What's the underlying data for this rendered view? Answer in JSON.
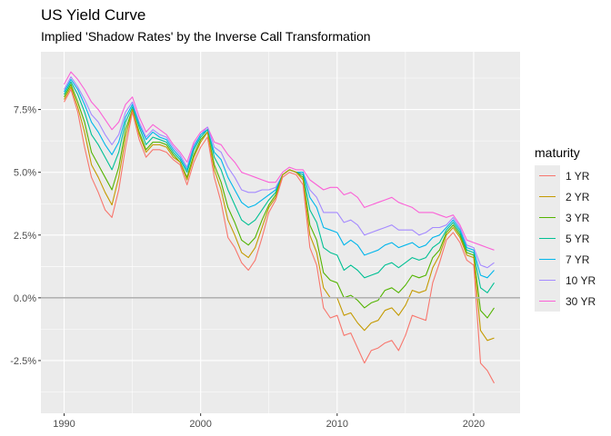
{
  "title": "US Yield Curve",
  "subtitle": "Implied 'Shadow Rates' by the Inverse Call Transformation",
  "legend": {
    "title": "maturity",
    "items": [
      {
        "label": "1 YR",
        "color": "#F8766D"
      },
      {
        "label": "2 YR",
        "color": "#C49A00"
      },
      {
        "label": "3 YR",
        "color": "#53B400"
      },
      {
        "label": "5 YR",
        "color": "#00C094"
      },
      {
        "label": "7 YR",
        "color": "#00B6EB"
      },
      {
        "label": "10 YR",
        "color": "#A58AFF"
      },
      {
        "label": "30 YR",
        "color": "#FB61D7"
      }
    ]
  },
  "chart_data": {
    "type": "line",
    "x_axis": {
      "ticks": [
        1990,
        2000,
        2010,
        2020
      ],
      "tick_labels": [
        "1990",
        "2000",
        "2010",
        "2020"
      ],
      "range": [
        1988.3,
        2023.4
      ]
    },
    "y_axis": {
      "ticks": [
        -2.5,
        0,
        2.5,
        5,
        7.5
      ],
      "tick_labels": [
        "-2.5%",
        "0.0%",
        "2.5%",
        "5.0%",
        "7.5%"
      ],
      "range": [
        -4.6,
        9.8
      ]
    },
    "reference_line": {
      "y": 0,
      "color": "#b3b3b3"
    },
    "panel_background": "#ebebeb",
    "grid": true,
    "legend_position": "right",
    "x": [
      1990.0,
      1990.5,
      1991.0,
      1991.5,
      1992.0,
      1992.5,
      1993.0,
      1993.5,
      1994.0,
      1994.5,
      1995.0,
      1995.5,
      1996.0,
      1996.5,
      1997.0,
      1997.5,
      1998.0,
      1998.5,
      1999.0,
      1999.5,
      2000.0,
      2000.5,
      2001.0,
      2001.5,
      2002.0,
      2002.5,
      2003.0,
      2003.5,
      2004.0,
      2004.5,
      2005.0,
      2005.5,
      2006.0,
      2006.5,
      2007.0,
      2007.5,
      2008.0,
      2008.5,
      2009.0,
      2009.5,
      2010.0,
      2010.5,
      2011.0,
      2011.5,
      2012.0,
      2012.5,
      2013.0,
      2013.5,
      2014.0,
      2014.5,
      2015.0,
      2015.5,
      2016.0,
      2016.5,
      2017.0,
      2017.5,
      2018.0,
      2018.5,
      2019.0,
      2019.5,
      2020.0,
      2020.5,
      2021.0,
      2021.5
    ],
    "series": [
      {
        "name": "1 YR",
        "color": "#F8766D",
        "values": [
          7.8,
          8.3,
          7.4,
          6.0,
          4.8,
          4.2,
          3.5,
          3.2,
          4.3,
          6.0,
          7.4,
          6.3,
          5.6,
          5.9,
          5.9,
          5.8,
          5.5,
          5.3,
          4.5,
          5.4,
          6.0,
          6.4,
          4.8,
          3.8,
          2.4,
          2.0,
          1.4,
          1.1,
          1.5,
          2.4,
          3.4,
          3.9,
          4.8,
          5.0,
          4.9,
          4.5,
          2.0,
          1.3,
          -0.4,
          -0.8,
          -0.7,
          -1.5,
          -1.4,
          -2.0,
          -2.6,
          -2.1,
          -2.0,
          -1.8,
          -1.7,
          -2.1,
          -1.5,
          -0.7,
          -0.8,
          -0.9,
          0.6,
          1.4,
          2.3,
          2.6,
          2.2,
          1.5,
          1.3,
          -2.6,
          -2.9,
          -3.4
        ]
      },
      {
        "name": "2 YR",
        "color": "#C49A00",
        "values": [
          7.9,
          8.4,
          7.6,
          6.6,
          5.3,
          4.8,
          4.2,
          3.7,
          4.8,
          6.4,
          7.5,
          6.5,
          5.8,
          6.1,
          6.1,
          6.0,
          5.6,
          5.4,
          4.7,
          5.6,
          6.2,
          6.6,
          5.1,
          4.3,
          3.1,
          2.5,
          1.8,
          1.6,
          2.0,
          2.8,
          3.6,
          4.0,
          4.9,
          5.1,
          5.0,
          4.7,
          2.5,
          1.8,
          0.4,
          0.0,
          0.0,
          -0.7,
          -0.6,
          -1.0,
          -1.3,
          -1.0,
          -0.9,
          -0.5,
          -0.4,
          -0.7,
          -0.3,
          0.3,
          0.2,
          0.3,
          1.2,
          1.7,
          2.5,
          2.8,
          2.4,
          1.7,
          1.6,
          -1.3,
          -1.7,
          -1.6
        ]
      },
      {
        "name": "3 YR",
        "color": "#53B400",
        "values": [
          8.0,
          8.5,
          7.8,
          7.0,
          5.8,
          5.3,
          4.8,
          4.3,
          5.2,
          6.7,
          7.5,
          6.6,
          5.9,
          6.2,
          6.2,
          6.1,
          5.7,
          5.4,
          4.8,
          5.7,
          6.3,
          6.6,
          5.3,
          4.6,
          3.6,
          3.0,
          2.3,
          2.1,
          2.4,
          3.1,
          3.7,
          4.1,
          4.9,
          5.1,
          5.0,
          4.8,
          2.9,
          2.3,
          1.0,
          0.7,
          0.6,
          0.0,
          0.1,
          -0.1,
          -0.4,
          -0.2,
          -0.1,
          0.3,
          0.4,
          0.2,
          0.5,
          0.9,
          0.8,
          0.9,
          1.6,
          1.9,
          2.6,
          2.9,
          2.5,
          1.8,
          1.7,
          -0.5,
          -0.8,
          -0.4
        ]
      },
      {
        "name": "5 YR",
        "color": "#00C094",
        "values": [
          8.1,
          8.6,
          8.1,
          7.4,
          6.5,
          6.1,
          5.6,
          5.1,
          5.8,
          7.0,
          7.6,
          6.8,
          6.1,
          6.4,
          6.3,
          6.2,
          5.8,
          5.5,
          5.0,
          5.9,
          6.4,
          6.7,
          5.6,
          5.1,
          4.3,
          3.7,
          3.1,
          2.9,
          3.1,
          3.5,
          3.9,
          4.2,
          4.9,
          5.1,
          5.0,
          4.9,
          3.5,
          3.0,
          2.0,
          1.8,
          1.7,
          1.1,
          1.3,
          1.1,
          0.8,
          0.9,
          1.0,
          1.3,
          1.4,
          1.2,
          1.4,
          1.6,
          1.5,
          1.6,
          2.0,
          2.2,
          2.7,
          3.0,
          2.6,
          1.9,
          1.8,
          0.4,
          0.2,
          0.6
        ]
      },
      {
        "name": "7 YR",
        "color": "#00B6EB",
        "values": [
          8.2,
          8.7,
          8.3,
          7.7,
          7.0,
          6.6,
          6.1,
          5.7,
          6.2,
          7.2,
          7.7,
          6.9,
          6.3,
          6.6,
          6.4,
          6.3,
          5.9,
          5.6,
          5.1,
          6.0,
          6.5,
          6.7,
          5.8,
          5.5,
          4.8,
          4.3,
          3.8,
          3.6,
          3.7,
          3.9,
          4.1,
          4.3,
          4.9,
          5.1,
          5.0,
          5.0,
          4.0,
          3.6,
          2.8,
          2.7,
          2.6,
          2.1,
          2.3,
          2.1,
          1.7,
          1.8,
          1.9,
          2.1,
          2.2,
          2.0,
          2.1,
          2.2,
          2.0,
          2.1,
          2.4,
          2.5,
          2.8,
          3.1,
          2.7,
          2.0,
          1.9,
          0.9,
          0.8,
          1.1
        ]
      },
      {
        "name": "10 YR",
        "color": "#A58AFF",
        "values": [
          8.3,
          8.8,
          8.4,
          7.9,
          7.3,
          7.0,
          6.5,
          6.1,
          6.5,
          7.4,
          7.8,
          7.0,
          6.4,
          6.7,
          6.5,
          6.4,
          6.0,
          5.7,
          5.2,
          6.1,
          6.5,
          6.8,
          6.0,
          5.8,
          5.2,
          4.8,
          4.3,
          4.2,
          4.2,
          4.3,
          4.3,
          4.4,
          4.9,
          5.1,
          5.0,
          5.0,
          4.3,
          4.0,
          3.4,
          3.4,
          3.4,
          3.0,
          3.1,
          2.9,
          2.5,
          2.6,
          2.7,
          2.8,
          2.9,
          2.7,
          2.7,
          2.7,
          2.5,
          2.6,
          2.8,
          2.8,
          2.9,
          3.2,
          2.8,
          2.1,
          2.0,
          1.3,
          1.2,
          1.4
        ]
      },
      {
        "name": "30 YR",
        "color": "#FB61D7",
        "values": [
          8.5,
          9.0,
          8.7,
          8.3,
          7.8,
          7.5,
          7.1,
          6.7,
          7.0,
          7.7,
          8.0,
          7.2,
          6.6,
          6.9,
          6.7,
          6.5,
          6.1,
          5.8,
          5.4,
          6.2,
          6.6,
          6.8,
          6.2,
          6.1,
          5.7,
          5.4,
          5.0,
          4.9,
          4.8,
          4.7,
          4.6,
          4.6,
          5.0,
          5.2,
          5.1,
          5.1,
          4.7,
          4.5,
          4.3,
          4.4,
          4.4,
          4.1,
          4.2,
          4.0,
          3.6,
          3.7,
          3.8,
          3.9,
          4.0,
          3.8,
          3.7,
          3.6,
          3.4,
          3.4,
          3.4,
          3.3,
          3.2,
          3.3,
          2.9,
          2.3,
          2.2,
          2.1,
          2.0,
          1.9
        ]
      }
    ]
  }
}
